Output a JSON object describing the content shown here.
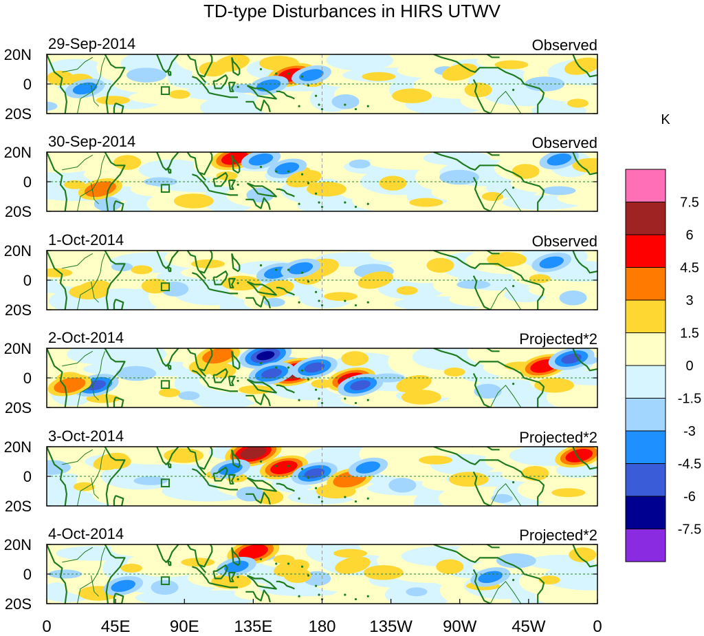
{
  "title": "TD-type Disturbances in HIRS UTWV",
  "chart_data": {
    "type": "heatmap",
    "title": "TD-type Disturbances in HIRS UTWV",
    "variable": "HIRS UTWV anomaly",
    "units": "K",
    "x_axis": {
      "range_deg_east": [
        0,
        360
      ],
      "tick_values_deg_east": [
        0,
        45,
        90,
        135,
        180,
        225,
        270,
        315,
        360
      ],
      "tick_labels": [
        "0",
        "45E",
        "90E",
        "135E",
        "180",
        "135W",
        "90W",
        "45W",
        "0"
      ]
    },
    "y_axis": {
      "range_deg": [
        -20,
        20
      ],
      "tick_values_deg": [
        20,
        0,
        -20
      ],
      "tick_labels": [
        "20N",
        "0",
        "20S"
      ]
    },
    "reference_lines": [
      "equator (0)",
      "dateline (180)"
    ],
    "box_marker": {
      "lon_range": [
        75,
        80
      ],
      "lat_range": [
        -7,
        -2
      ]
    },
    "panels": [
      {
        "date": "29-Sep-2014",
        "label": "Observed",
        "anomalies": [
          {
            "lon": 160,
            "lat": 6,
            "value": 5
          },
          {
            "lon": 173,
            "lat": 6,
            "value": -3
          },
          {
            "lon": 25,
            "lat": -3,
            "value": -3
          },
          {
            "lon": 121,
            "lat": 14,
            "value": 2
          },
          {
            "lon": 145,
            "lat": -1,
            "value": -3
          },
          {
            "lon": 270,
            "lat": 8,
            "value": 2
          },
          {
            "lon": 350,
            "lat": 12,
            "value": 2
          }
        ]
      },
      {
        "date": "30-Sep-2014",
        "label": "Observed",
        "anomalies": [
          {
            "lon": 123,
            "lat": 16,
            "value": 5
          },
          {
            "lon": 140,
            "lat": 15,
            "value": -3
          },
          {
            "lon": 157,
            "lat": 9,
            "value": -3
          },
          {
            "lon": 35,
            "lat": -5,
            "value": 4
          },
          {
            "lon": 168,
            "lat": 2,
            "value": 2
          },
          {
            "lon": 335,
            "lat": 15,
            "value": -3
          }
        ]
      },
      {
        "date": "1-Oct-2014",
        "label": "Observed",
        "anomalies": [
          {
            "lon": 150,
            "lat": 5,
            "value": -3
          },
          {
            "lon": 178,
            "lat": 8,
            "value": 3
          },
          {
            "lon": 166,
            "lat": 8,
            "value": -3
          },
          {
            "lon": 215,
            "lat": 0,
            "value": 2
          },
          {
            "lon": 150,
            "lat": -6,
            "value": 2
          },
          {
            "lon": 30,
            "lat": -6,
            "value": 2
          },
          {
            "lon": 330,
            "lat": 12,
            "value": -3
          }
        ]
      },
      {
        "date": "2-Oct-2014",
        "label": "Projected*2",
        "anomalies": [
          {
            "lon": 162,
            "lat": 4,
            "value": 7
          },
          {
            "lon": 143,
            "lat": 15,
            "value": -6
          },
          {
            "lon": 147,
            "lat": 3,
            "value": -4.5
          },
          {
            "lon": 175,
            "lat": 7,
            "value": -4.5
          },
          {
            "lon": 199,
            "lat": -1,
            "value": 5
          },
          {
            "lon": 205,
            "lat": -5,
            "value": -4.5
          },
          {
            "lon": 240,
            "lat": -4,
            "value": 2
          },
          {
            "lon": 112,
            "lat": 15,
            "value": 4
          },
          {
            "lon": 325,
            "lat": 8,
            "value": 5
          },
          {
            "lon": 343,
            "lat": 13,
            "value": -4.5
          },
          {
            "lon": 32,
            "lat": -5,
            "value": -4.5
          },
          {
            "lon": 15,
            "lat": -5,
            "value": 4
          }
        ]
      },
      {
        "date": "3-Oct-2014",
        "label": "Projected*2",
        "anomalies": [
          {
            "lon": 135,
            "lat": 16,
            "value": 7
          },
          {
            "lon": 155,
            "lat": 6,
            "value": 5
          },
          {
            "lon": 175,
            "lat": 2,
            "value": -4.5
          },
          {
            "lon": 198,
            "lat": -2,
            "value": 4.5
          },
          {
            "lon": 120,
            "lat": 5,
            "value": -3
          },
          {
            "lon": 210,
            "lat": 6,
            "value": -3
          },
          {
            "lon": 348,
            "lat": 14,
            "value": 5
          },
          {
            "lon": 42,
            "lat": 10,
            "value": 2
          }
        ]
      },
      {
        "date": "4-Oct-2014",
        "label": "Projected*2",
        "anomalies": [
          {
            "lon": 135,
            "lat": 15,
            "value": 6
          },
          {
            "lon": 124,
            "lat": 5,
            "value": -3
          },
          {
            "lon": 160,
            "lat": 4,
            "value": 2
          },
          {
            "lon": 200,
            "lat": 6,
            "value": 2
          },
          {
            "lon": 290,
            "lat": -2,
            "value": -3
          },
          {
            "lon": 50,
            "lat": -8,
            "value": -3
          }
        ]
      }
    ],
    "colorbar": {
      "title": "K",
      "tick_labels": [
        "7.5",
        "6",
        "4.5",
        "3",
        "1.5",
        "0",
        "-1.5",
        "-3",
        "-4.5",
        "-6",
        "-7.5"
      ],
      "levels_top_to_bottom": [
        {
          "range": "> 7.5",
          "color": "#ff6fb7"
        },
        {
          "range": "6 to 7.5",
          "color": "#a02323"
        },
        {
          "range": "4.5 to 6",
          "color": "#ff0000"
        },
        {
          "range": "3 to 4.5",
          "color": "#ff7a00"
        },
        {
          "range": "1.5 to 3",
          "color": "#ffd733"
        },
        {
          "range": "0 to 1.5",
          "color": "#ffffc6"
        },
        {
          "range": "-1.5 to 0",
          "color": "#d6f5ff"
        },
        {
          "range": "-3 to -1.5",
          "color": "#a3d6ff"
        },
        {
          "range": "-4.5 to -3",
          "color": "#1e90ff"
        },
        {
          "range": "-6 to -4.5",
          "color": "#3a5cd8"
        },
        {
          "range": "-7.5 to -6",
          "color": "#000090"
        },
        {
          "range": "< -7.5",
          "color": "#8a2be2"
        }
      ]
    },
    "colors": {
      "coast": "#1e7b1e",
      "reference_line": "#2e7d32"
    }
  }
}
